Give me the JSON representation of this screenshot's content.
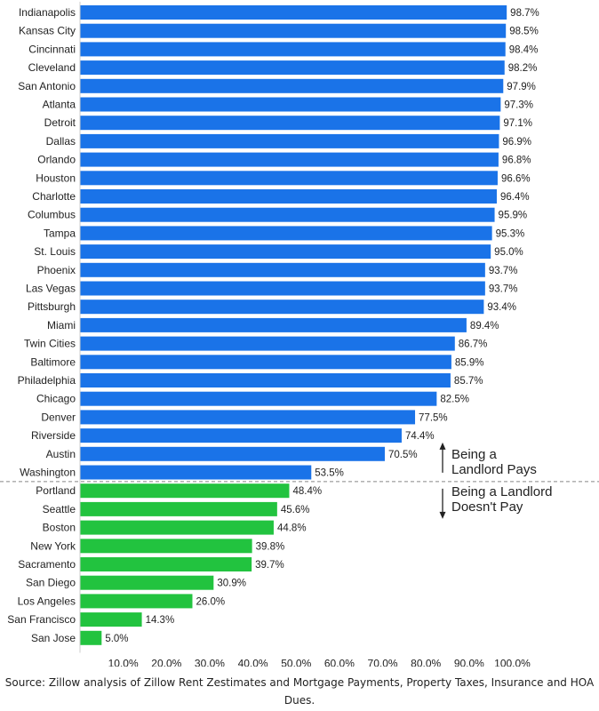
{
  "chart_data": {
    "type": "bar",
    "orientation": "horizontal",
    "categories": [
      "Indianapolis",
      "Kansas City",
      "Cincinnati",
      "Cleveland",
      "San Antonio",
      "Atlanta",
      "Detroit",
      "Dallas",
      "Orlando",
      "Houston",
      "Charlotte",
      "Columbus",
      "Tampa",
      "St. Louis",
      "Phoenix",
      "Las Vegas",
      "Pittsburgh",
      "Miami",
      "Twin Cities",
      "Baltimore",
      "Philadelphia",
      "Chicago",
      "Denver",
      "Riverside",
      "Austin",
      "Washington",
      "Portland",
      "Seattle",
      "Boston",
      "New York",
      "Sacramento",
      "San Diego",
      "Los Angeles",
      "San Francisco",
      "San Jose"
    ],
    "values": [
      98.7,
      98.5,
      98.4,
      98.2,
      97.9,
      97.3,
      97.1,
      96.9,
      96.8,
      96.6,
      96.4,
      95.9,
      95.3,
      95.0,
      93.7,
      93.7,
      93.4,
      89.4,
      86.7,
      85.9,
      85.7,
      82.5,
      77.5,
      74.4,
      70.5,
      53.5,
      48.4,
      45.6,
      44.8,
      39.8,
      39.7,
      30.9,
      26.0,
      14.3,
      5.0
    ],
    "value_labels": [
      "98.7%",
      "98.5%",
      "98.4%",
      "98.2%",
      "97.9%",
      "97.3%",
      "97.1%",
      "96.9%",
      "96.8%",
      "96.6%",
      "96.4%",
      "95.9%",
      "95.3%",
      "95.0%",
      "93.7%",
      "93.7%",
      "93.4%",
      "89.4%",
      "86.7%",
      "85.9%",
      "85.7%",
      "82.5%",
      "77.5%",
      "74.4%",
      "70.5%",
      "53.5%",
      "48.4%",
      "45.6%",
      "44.8%",
      "39.8%",
      "39.7%",
      "30.9%",
      "26.0%",
      "14.3%",
      "5.0%"
    ],
    "xlim": [
      0,
      110
    ],
    "xticks": [
      10,
      20,
      30,
      40,
      50,
      60,
      70,
      80,
      90,
      100
    ],
    "xtick_labels": [
      "10.0%",
      "20.0%",
      "30.0%",
      "40.0%",
      "50.0%",
      "60.0%",
      "70.0%",
      "80.0%",
      "90.0%",
      "100.0%"
    ],
    "threshold": 50,
    "colors": {
      "above": "#1a73e8",
      "below": "#22c33f",
      "axis": "#cccccc",
      "divider": "#888888",
      "text": "#222222"
    },
    "grid": false,
    "annotations": {
      "above": [
        "Being a",
        "Landlord Pays"
      ],
      "below": [
        "Being a Landlord",
        "Doesn't Pay"
      ]
    }
  },
  "source": "Source: Zillow analysis of Zillow Rent Zestimates and Mortgage Payments, Property Taxes, Insurance and HOA Dues."
}
